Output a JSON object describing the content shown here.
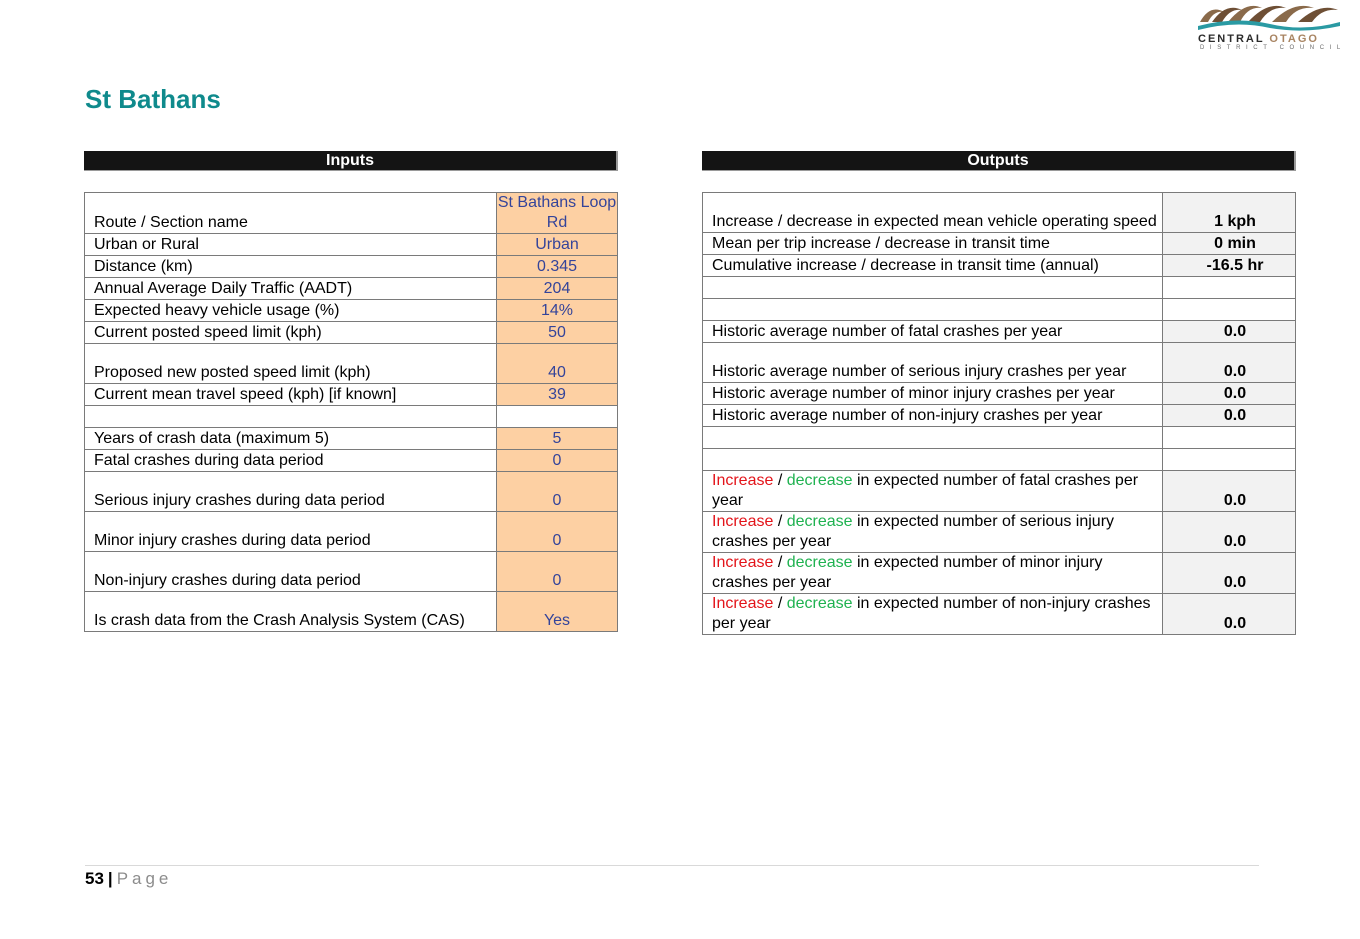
{
  "logo": {
    "line1_a": "CENTRAL",
    "line1_b": "OTAGO",
    "line2": "DISTRICT COUNCIL"
  },
  "title": "St Bathans",
  "inputs_heading": "Inputs",
  "outputs_heading": "Outputs",
  "inputs": [
    {
      "label": "Route / Section name",
      "value": "St Bathans Loop Rd"
    },
    {
      "label": "Urban or Rural",
      "value": "Urban"
    },
    {
      "label": "Distance (km)",
      "value": "0.345"
    },
    {
      "label": "Annual Average Daily Traffic (AADT)",
      "value": "204"
    },
    {
      "label": "Expected heavy vehicle usage (%)",
      "value": "14%"
    },
    {
      "label": "Current posted speed limit (kph)",
      "value": "50"
    },
    {
      "label": "Proposed new posted speed limit (kph)",
      "value": "40"
    },
    {
      "label": "Current mean travel speed (kph) [if known]",
      "value": "39"
    },
    {
      "label": "",
      "value": ""
    },
    {
      "label": "Years of crash data (maximum 5)",
      "value": "5"
    },
    {
      "label": "Fatal crashes during data period",
      "value": "0"
    },
    {
      "label": "Serious injury crashes during data period",
      "value": "0"
    },
    {
      "label": "Minor injury crashes during data period",
      "value": "0"
    },
    {
      "label": "Non-injury crashes during data period",
      "value": "0"
    },
    {
      "label": "Is crash data from the Crash Analysis System (CAS)",
      "value": "Yes"
    }
  ],
  "outputs": [
    {
      "label": "Increase / decrease in expected mean vehicle operating speed",
      "value": "1 kph"
    },
    {
      "label": "Mean per trip increase / decrease in transit time",
      "value": "0 min"
    },
    {
      "label": "Cumulative increase / decrease in transit time (annual)",
      "value": "-16.5 hr"
    },
    {
      "label": "",
      "value": ""
    },
    {
      "label": "",
      "value": ""
    },
    {
      "label": "Historic average number of fatal crashes per year",
      "value": "0.0"
    },
    {
      "label": "Historic average number of serious injury crashes per year",
      "value": "0.0"
    },
    {
      "label": "Historic average number of minor injury crashes per year",
      "value": "0.0"
    },
    {
      "label": "Historic average number of non-injury crashes per year",
      "value": "0.0"
    },
    {
      "label": "",
      "value": ""
    },
    {
      "label": "",
      "value": ""
    },
    {
      "inc": "Increase",
      "slash": " / ",
      "dec": "decrease",
      "rest": " in expected number of fatal crashes per year",
      "value": "0.0"
    },
    {
      "inc": "Increase",
      "slash": " / ",
      "dec": "decrease",
      "rest": " in expected number of serious injury crashes per year",
      "value": "0.0"
    },
    {
      "inc": "Increase",
      "slash": " / ",
      "dec": "decrease",
      "rest": " in expected number of minor injury crashes per year",
      "value": "0.0"
    },
    {
      "inc": "Increase",
      "slash": " / ",
      "dec": "decrease",
      "rest": " in expected number of non-injury crashes per year",
      "value": "0.0"
    }
  ],
  "footer": {
    "page_number": "53",
    "separator": "|",
    "page_word": "Page"
  }
}
